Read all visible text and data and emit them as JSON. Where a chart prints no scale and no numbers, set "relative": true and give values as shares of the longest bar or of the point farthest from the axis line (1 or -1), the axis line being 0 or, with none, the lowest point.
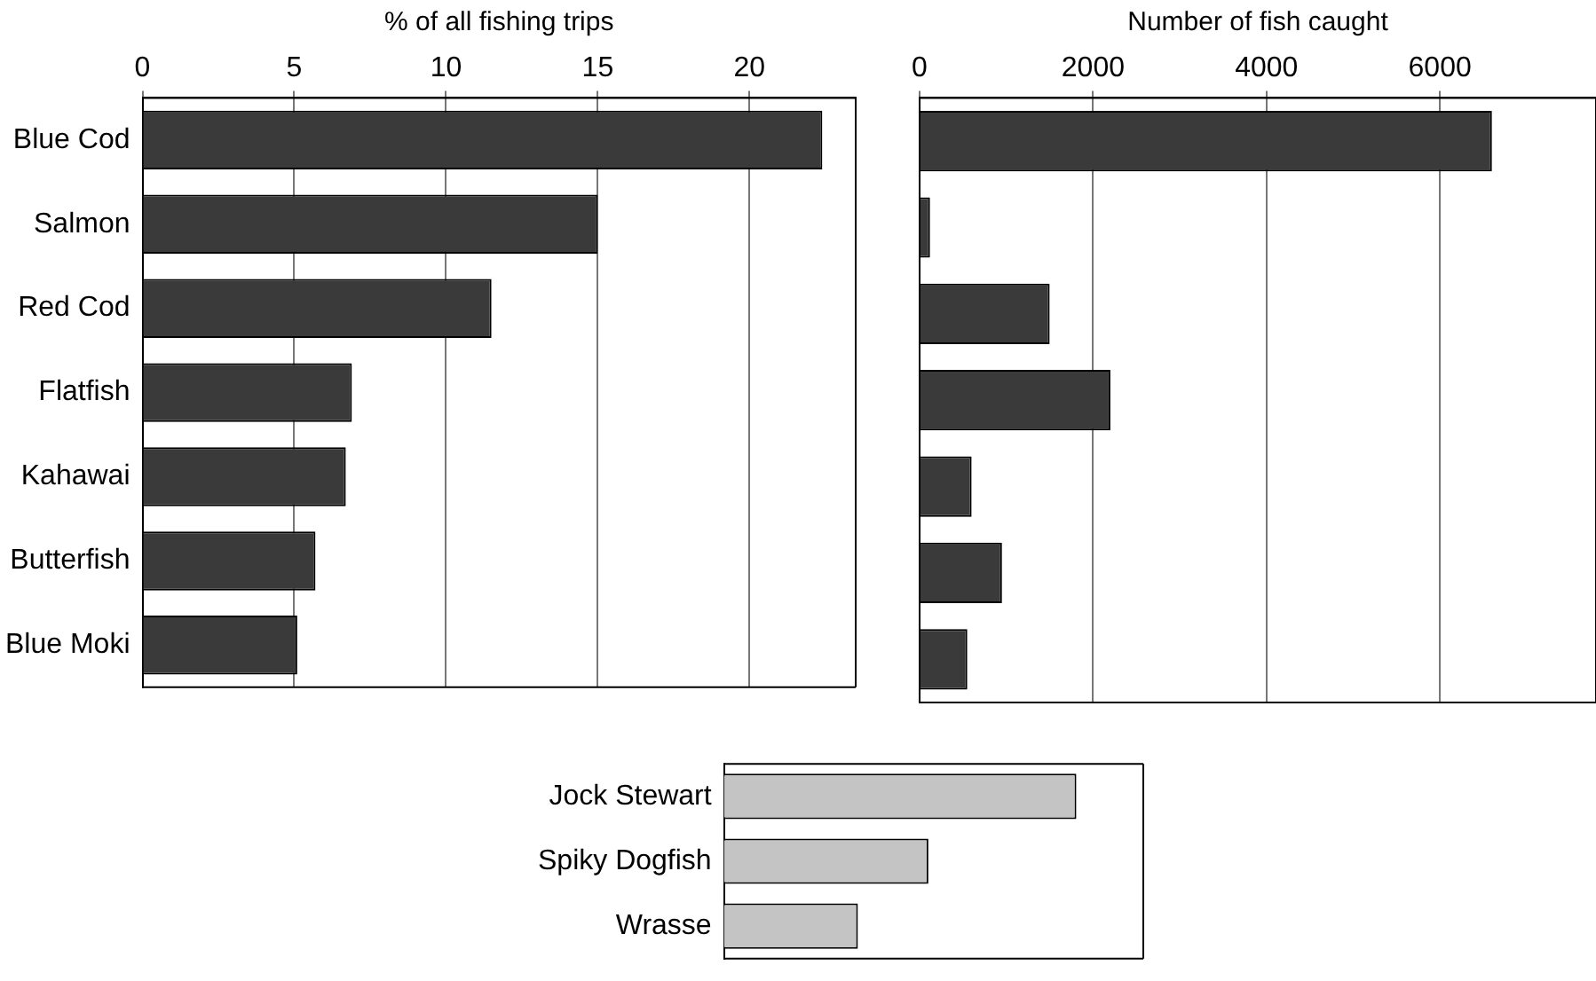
{
  "chart_data": [
    {
      "type": "bar",
      "orientation": "horizontal",
      "xlabel": "% of all fishing trips",
      "categories": [
        "Blue Cod",
        "Salmon",
        "Red Cod",
        "Flatfish",
        "Kahawai",
        "Butterfish",
        "Blue Moki"
      ],
      "values": [
        22.4,
        15.0,
        11.5,
        6.9,
        6.7,
        5.7,
        5.1
      ],
      "color": "#3a3a3a",
      "xlim": [
        0,
        23.5
      ],
      "xticks": [
        0,
        5,
        10,
        15,
        20
      ],
      "grid": "x"
    },
    {
      "type": "bar",
      "orientation": "horizontal",
      "xlabel": "Number of fish caught",
      "categories": [
        null,
        null,
        null,
        null,
        null,
        null,
        null
      ],
      "values": [
        6600,
        120,
        1500,
        2200,
        600,
        950,
        550
      ],
      "color": "#3a3a3a",
      "xlim": [
        0,
        7800
      ],
      "xticks": [
        0,
        2000,
        4000,
        6000
      ],
      "grid": "x",
      "tick_labels": "x"
    },
    {
      "type": "bar",
      "orientation": "horizontal",
      "relative": true,
      "categories": [
        "Jock Stewart",
        "Spiky Dogfish",
        "Wrasse"
      ],
      "values": [
        1,
        0.58,
        0.38
      ],
      "color": "#c4c4c4",
      "tick_labels": "y"
    }
  ]
}
